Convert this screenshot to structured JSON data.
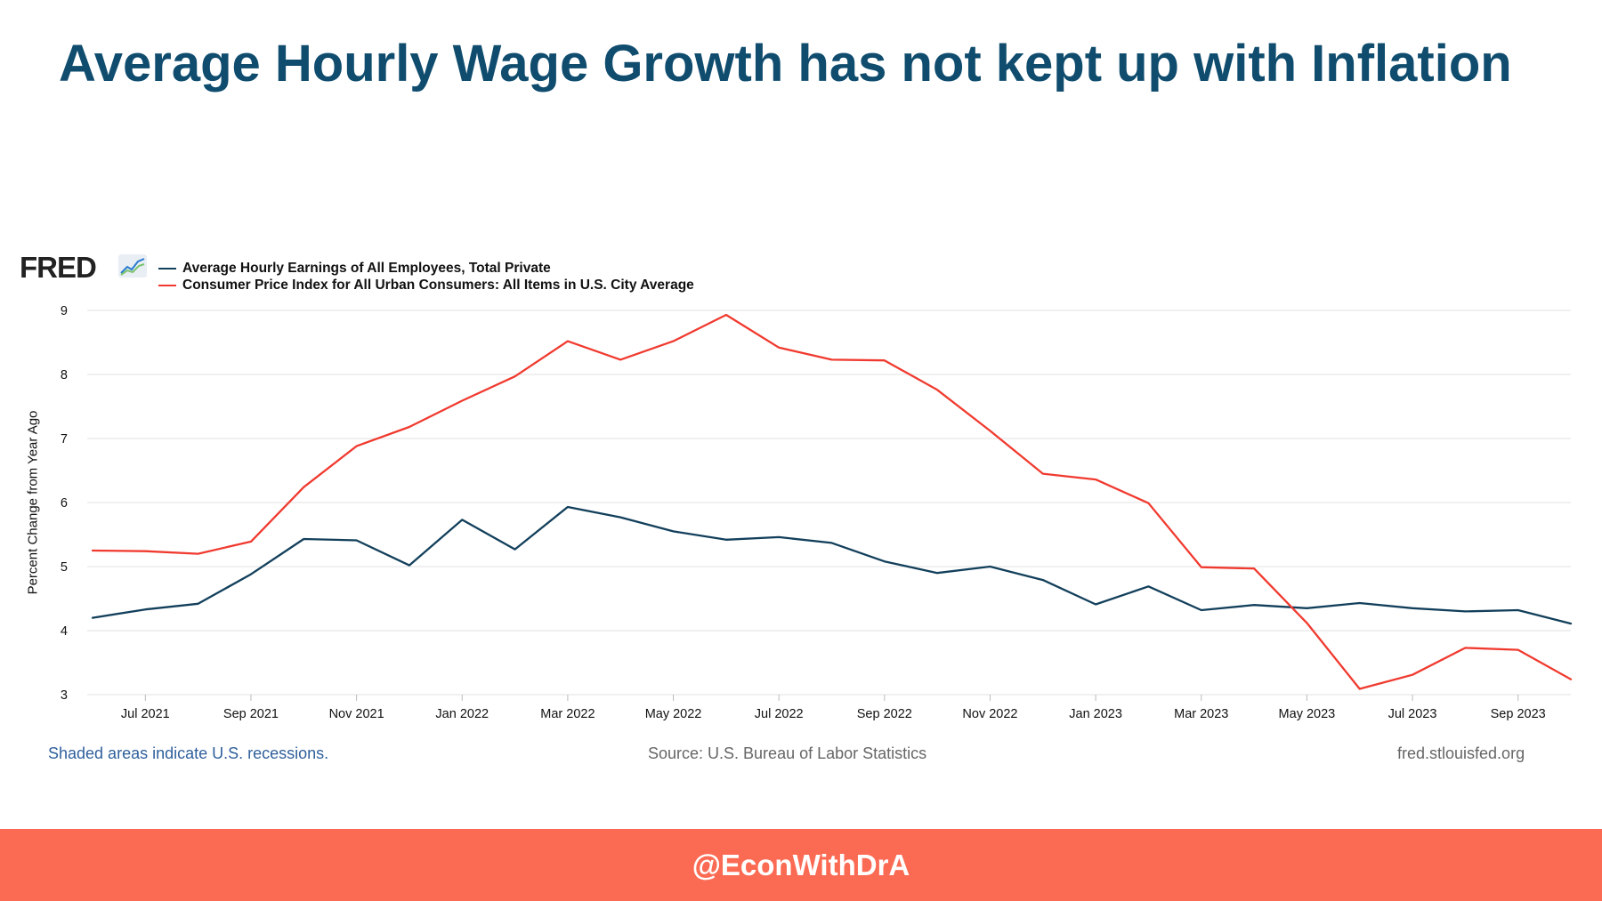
{
  "slide": {
    "title": "Average Hourly Wage Growth has not kept up with Inflation",
    "handle": "@EconWithDrA"
  },
  "fred": {
    "logo_text": "FRED",
    "shaded_note": "Shaded areas indicate U.S. recessions.",
    "source": "Source: U.S. Bureau of Labor Statistics",
    "site": "fred.stlouisfed.org"
  },
  "colors": {
    "title": "#0f4c6e",
    "wages": "#123f5b",
    "cpi": "#f03a2f",
    "bottom_bar": "#fb6a53",
    "note_link": "#2f5f9c"
  },
  "chart_data": {
    "type": "line",
    "title": "",
    "xlabel": "",
    "ylabel": "Percent Change from Year Ago",
    "ylim": [
      3,
      9
    ],
    "yticks": [
      "9",
      "8",
      "7",
      "6",
      "5",
      "4",
      "3"
    ],
    "xticks": [
      "Jul 2021",
      "Sep 2021",
      "Nov 2021",
      "Jan 2022",
      "Mar 2022",
      "May 2022",
      "Jul 2022",
      "Sep 2022",
      "Nov 2022",
      "Jan 2023",
      "Mar 2023",
      "May 2023",
      "Jul 2023",
      "Sep 2023"
    ],
    "x": [
      "2021-06",
      "2021-07",
      "2021-08",
      "2021-09",
      "2021-10",
      "2021-11",
      "2021-12",
      "2022-01",
      "2022-02",
      "2022-03",
      "2022-04",
      "2022-05",
      "2022-06",
      "2022-07",
      "2022-08",
      "2022-09",
      "2022-10",
      "2022-11",
      "2022-12",
      "2023-01",
      "2023-02",
      "2023-03",
      "2023-04",
      "2023-05",
      "2023-06",
      "2023-07",
      "2023-08",
      "2023-09",
      "2023-10"
    ],
    "grid": true,
    "legend_position": "top-left",
    "series": [
      {
        "name": "Average Hourly Earnings of All Employees, Total Private",
        "values": [
          4.2,
          4.33,
          4.42,
          4.88,
          5.43,
          5.41,
          5.02,
          5.73,
          5.27,
          5.93,
          5.77,
          5.55,
          5.42,
          5.46,
          5.37,
          5.08,
          4.9,
          5.0,
          4.79,
          4.41,
          4.69,
          4.32,
          4.4,
          4.35,
          4.43,
          4.35,
          4.3,
          4.32,
          4.11
        ]
      },
      {
        "name": "Consumer Price Index for All Urban Consumers: All Items in U.S. City Average",
        "values": [
          5.25,
          5.24,
          5.2,
          5.39,
          6.24,
          6.88,
          7.18,
          7.59,
          7.97,
          8.52,
          8.23,
          8.52,
          8.93,
          8.42,
          8.23,
          8.22,
          7.76,
          7.12,
          6.45,
          6.36,
          5.99,
          4.99,
          4.97,
          4.12,
          3.09,
          3.31,
          3.73,
          3.7,
          3.24
        ]
      }
    ]
  }
}
